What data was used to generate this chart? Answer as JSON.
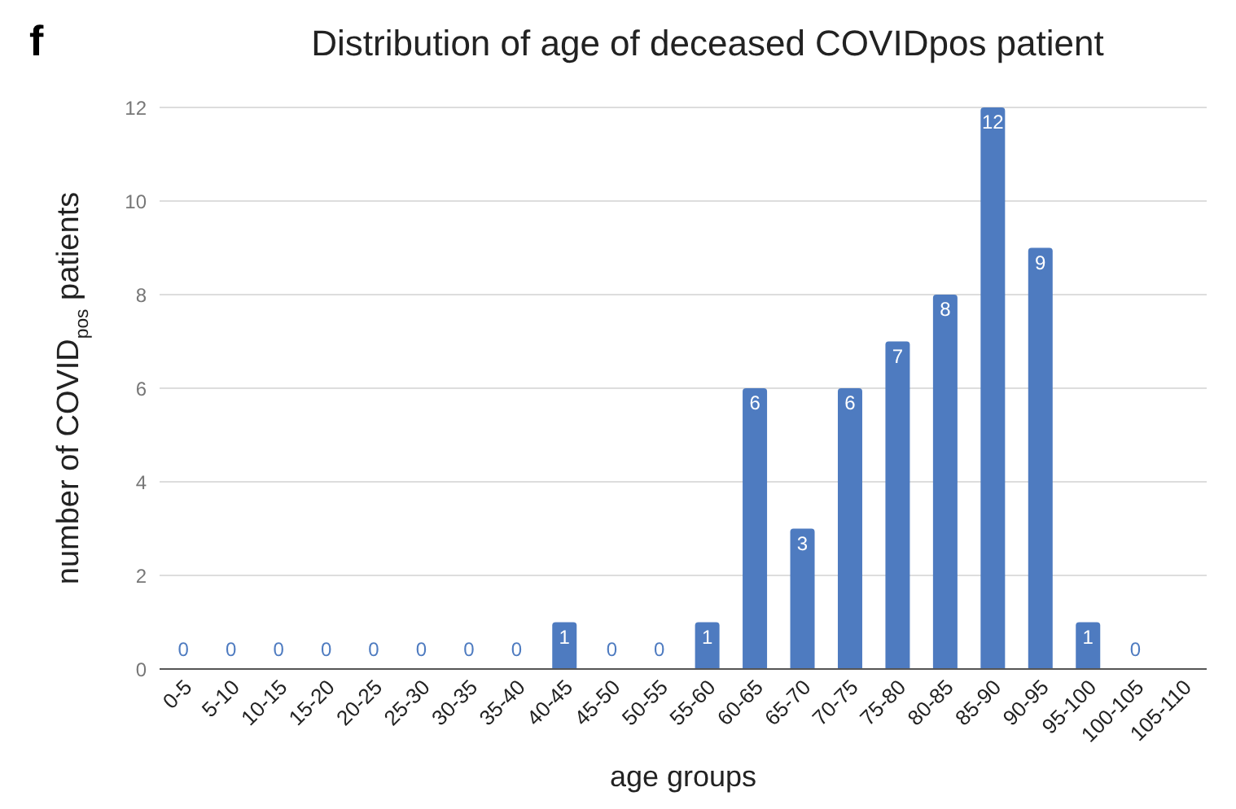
{
  "chart_data": {
    "type": "bar",
    "title": "Distribution of age of deceased COVIDpos patient",
    "xlabel": "age groups",
    "ylabel": "number of  COVID$_{pos}$ patients",
    "annotations": [
      "f"
    ],
    "categories": [
      "0-5",
      "5-10",
      "10-15",
      "15-20",
      "20-25",
      "25-30",
      "30-35",
      "35-40",
      "40-45",
      "45-50",
      "50-55",
      "55-60",
      "60-65",
      "65-70",
      "70-75",
      "75-80",
      "80-85",
      "85-90",
      "90-95",
      "95-100",
      "100-105",
      "105-110"
    ],
    "values": [
      0,
      0,
      0,
      0,
      0,
      0,
      0,
      0,
      1,
      0,
      0,
      1,
      6,
      3,
      6,
      7,
      8,
      12,
      9,
      1,
      0,
      null
    ],
    "color": "#4e7bc0",
    "ylim": [
      0,
      12
    ],
    "yticks": [
      0,
      2,
      4,
      6,
      8,
      10,
      12
    ],
    "grid": "y",
    "data_labels": true,
    "legend": false
  }
}
